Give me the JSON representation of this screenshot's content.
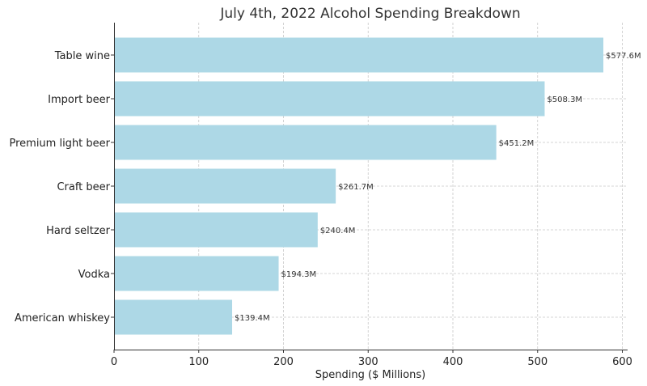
{
  "chart_data": {
    "type": "bar",
    "orientation": "horizontal",
    "title": "July 4th, 2022 Alcohol Spending Breakdown",
    "xlabel": "Spending ($ Millions)",
    "ylabel": "",
    "categories": [
      "Table wine",
      "Import beer",
      "Premium light beer",
      "Craft beer",
      "Hard seltzer",
      "Vodka",
      "American whiskey"
    ],
    "values": [
      577.6,
      508.3,
      451.2,
      261.7,
      240.4,
      194.3,
      139.4
    ],
    "data_labels": [
      "$577.6M",
      "$508.3M",
      "$451.2M",
      "$261.7M",
      "$240.4M",
      "$194.3M",
      "$139.4M"
    ],
    "xlim": [
      0,
      605
    ],
    "xticks": [
      0,
      100,
      200,
      300,
      400,
      500,
      600
    ],
    "grid": true,
    "bar_color": "#add8e6"
  }
}
